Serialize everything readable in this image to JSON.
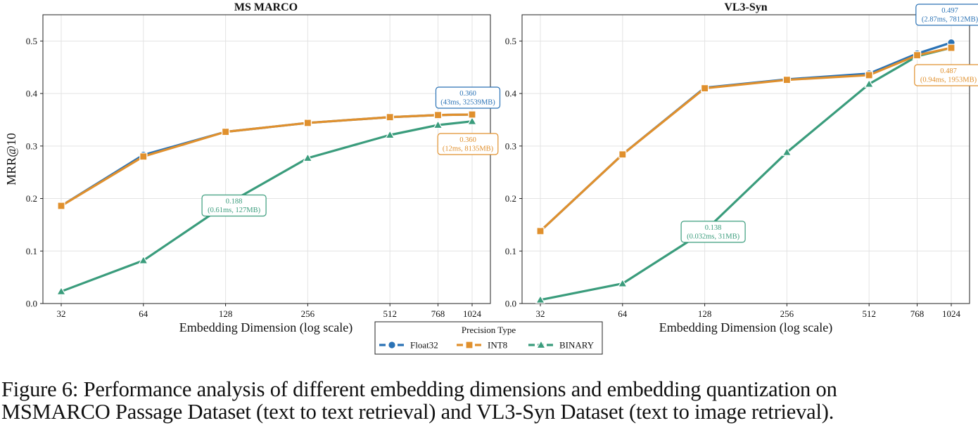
{
  "figure": {
    "legend_title": "Precision Type",
    "caption_line1": "Figure 6: Performance analysis of different embedding dimensions and embedding quantization on",
    "caption_line2": "MSMARCO Passage Dataset (text to text retrieval) and VL3-Syn Dataset (text to image retrieval)."
  },
  "colors": {
    "Float32": "#2a72b5",
    "INT8": "#e0902d",
    "BINARY": "#3a9c7c"
  },
  "chart_data": [
    {
      "type": "line",
      "title": "MS MARCO",
      "xlabel": "Embedding Dimension (log scale)",
      "ylabel": "MRR@10",
      "xscale": "log2",
      "x": [
        32,
        64,
        128,
        256,
        512,
        768,
        1024
      ],
      "x_tick_labels": [
        "32",
        "64",
        "128",
        "256",
        "512",
        "768",
        "1024"
      ],
      "ylim": [
        0,
        0.55
      ],
      "yticks": [
        0.0,
        0.1,
        0.2,
        0.3,
        0.4,
        0.5
      ],
      "y_tick_labels": [
        "0.0",
        "0.1",
        "0.2",
        "0.3",
        "0.4",
        "0.5"
      ],
      "grid": true,
      "series": [
        {
          "name": "Float32",
          "marker": "circle",
          "values": [
            0.186,
            0.283,
            0.327,
            0.344,
            0.355,
            0.359,
            0.36
          ]
        },
        {
          "name": "INT8",
          "marker": "square",
          "values": [
            0.186,
            0.28,
            0.327,
            0.344,
            0.355,
            0.359,
            0.36
          ]
        },
        {
          "name": "BINARY",
          "marker": "triangle",
          "values": [
            0.023,
            0.082,
            0.188,
            0.277,
            0.321,
            0.34,
            0.347
          ]
        }
      ],
      "annotations": [
        {
          "series": "Float32",
          "line1": "0.360",
          "line2": "(43ms, 32539MB)",
          "anchor_x": 1024,
          "anchor_y": 0.36,
          "placement": "above"
        },
        {
          "series": "INT8",
          "line1": "0.360",
          "line2": "(12ms, 8135MB)",
          "anchor_x": 1024,
          "anchor_y": 0.36,
          "placement": "below"
        },
        {
          "series": "BINARY",
          "line1": "0.188",
          "line2": "(0.61ms, 127MB)",
          "anchor_x": 128,
          "anchor_y": 0.188,
          "placement": "on"
        }
      ]
    },
    {
      "type": "line",
      "title": "VL3-Syn",
      "xlabel": "Embedding Dimension (log scale)",
      "ylabel": "",
      "xscale": "log2",
      "x": [
        32,
        64,
        128,
        256,
        512,
        768,
        1024
      ],
      "x_tick_labels": [
        "32",
        "64",
        "128",
        "256",
        "512",
        "768",
        "1024"
      ],
      "ylim": [
        0,
        0.55
      ],
      "yticks": [
        0.0,
        0.1,
        0.2,
        0.3,
        0.4,
        0.5
      ],
      "y_tick_labels": [
        "0.0",
        "0.1",
        "0.2",
        "0.3",
        "0.4",
        "0.5"
      ],
      "grid": true,
      "series": [
        {
          "name": "Float32",
          "marker": "circle",
          "values": [
            0.138,
            0.284,
            0.411,
            0.427,
            0.438,
            0.476,
            0.497
          ]
        },
        {
          "name": "INT8",
          "marker": "square",
          "values": [
            0.138,
            0.284,
            0.41,
            0.426,
            0.435,
            0.473,
            0.487
          ]
        },
        {
          "name": "BINARY",
          "marker": "triangle",
          "values": [
            0.007,
            0.038,
            0.138,
            0.288,
            0.418,
            0.471,
            0.487
          ]
        }
      ],
      "annotations": [
        {
          "series": "Float32",
          "line1": "0.497",
          "line2": "(2.87ms, 7812MB)",
          "anchor_x": 1024,
          "anchor_y": 0.497,
          "placement": "above"
        },
        {
          "series": "INT8",
          "line1": "0.487",
          "line2": "(0.94ms, 1953MB)",
          "anchor_x": 1024,
          "anchor_y": 0.487,
          "placement": "below"
        },
        {
          "series": "BINARY",
          "line1": "0.138",
          "line2": "(0.032ms, 31MB)",
          "anchor_x": 128,
          "anchor_y": 0.138,
          "placement": "on"
        }
      ]
    }
  ]
}
